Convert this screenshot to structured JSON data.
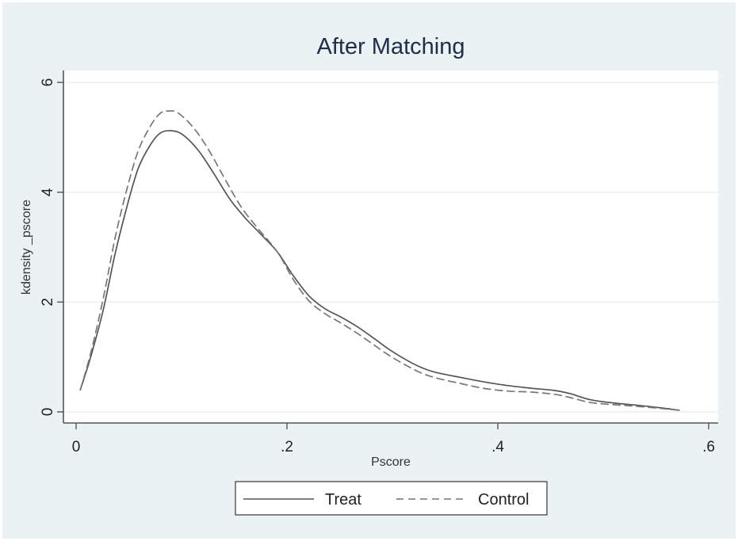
{
  "chart_data": {
    "type": "line",
    "title": "After Matching",
    "xlabel": "Pscore",
    "ylabel": "kdensity _pscore",
    "xlim": [
      -0.0,
      0.605
    ],
    "ylim": [
      -0.2,
      6.2
    ],
    "x_ticks": [
      0,
      0.2,
      0.4,
      0.6
    ],
    "x_tick_labels": [
      "0",
      ".2",
      ".4",
      ".6"
    ],
    "y_ticks": [
      0,
      2,
      4,
      6
    ],
    "y_tick_labels": [
      "0",
      "2",
      "4",
      "6"
    ],
    "grid": "horizontal",
    "legend_position": "bottom",
    "series": [
      {
        "name": "Treat",
        "style": "solid",
        "color": "#555555",
        "x": [
          0.004,
          0.014,
          0.026,
          0.037,
          0.048,
          0.059,
          0.071,
          0.08,
          0.09,
          0.101,
          0.116,
          0.131,
          0.146,
          0.161,
          0.176,
          0.191,
          0.206,
          0.221,
          0.236,
          0.251,
          0.266,
          0.281,
          0.296,
          0.311,
          0.326,
          0.341,
          0.364,
          0.386,
          0.409,
          0.432,
          0.454,
          0.469,
          0.488,
          0.511,
          0.533,
          0.556,
          0.572
        ],
        "values": [
          0.4,
          1.01,
          1.88,
          2.88,
          3.72,
          4.44,
          4.88,
          5.08,
          5.12,
          5.05,
          4.76,
          4.33,
          3.87,
          3.52,
          3.22,
          2.91,
          2.48,
          2.11,
          1.88,
          1.73,
          1.56,
          1.36,
          1.15,
          0.97,
          0.82,
          0.72,
          0.63,
          0.55,
          0.48,
          0.43,
          0.39,
          0.33,
          0.22,
          0.16,
          0.12,
          0.07,
          0.03
        ]
      },
      {
        "name": "Control",
        "style": "dashed",
        "color": "#777777",
        "x": [
          0.004,
          0.014,
          0.026,
          0.037,
          0.048,
          0.059,
          0.071,
          0.08,
          0.088,
          0.097,
          0.112,
          0.127,
          0.142,
          0.157,
          0.172,
          0.191,
          0.206,
          0.221,
          0.236,
          0.251,
          0.266,
          0.281,
          0.296,
          0.311,
          0.326,
          0.341,
          0.364,
          0.386,
          0.409,
          0.432,
          0.454,
          0.469,
          0.488,
          0.511,
          0.533,
          0.556,
          0.572
        ],
        "values": [
          0.4,
          1.08,
          2.09,
          3.17,
          4.04,
          4.76,
          5.22,
          5.44,
          5.48,
          5.44,
          5.16,
          4.73,
          4.21,
          3.72,
          3.35,
          2.91,
          2.41,
          2.02,
          1.79,
          1.62,
          1.44,
          1.24,
          1.04,
          0.87,
          0.72,
          0.62,
          0.52,
          0.43,
          0.38,
          0.36,
          0.32,
          0.26,
          0.17,
          0.13,
          0.1,
          0.06,
          0.03
        ]
      }
    ]
  },
  "legend": {
    "items": [
      {
        "label": "Treat",
        "style": "solid"
      },
      {
        "label": "Control",
        "style": "dashed"
      }
    ]
  },
  "colors": {
    "background": "#eaf2f3",
    "plot_background": "#ffffff",
    "title": "#1e2d4a",
    "axis": "#555555",
    "grid": "#eaf2f3",
    "text": "#222222"
  }
}
